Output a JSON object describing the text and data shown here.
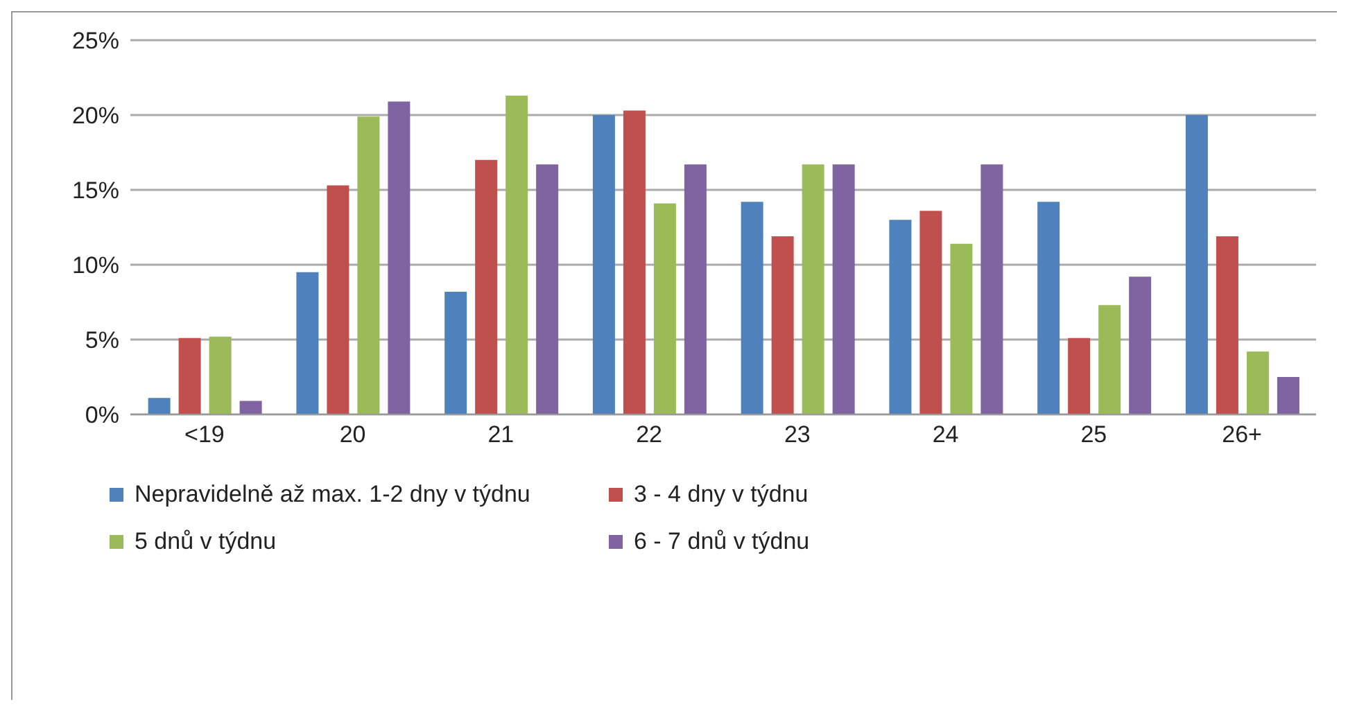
{
  "chart_data": {
    "type": "bar",
    "categories": [
      "<19",
      "20",
      "21",
      "22",
      "23",
      "24",
      "25",
      "26+"
    ],
    "series": [
      {
        "name": "Nepravidelně až max. 1-2 dny v týdnu",
        "color": "#4f81bd",
        "values": [
          1.1,
          9.5,
          8.2,
          20.0,
          14.2,
          13.0,
          14.2,
          20.0
        ]
      },
      {
        "name": "3 - 4 dny v týdnu",
        "color": "#c0504d",
        "values": [
          5.1,
          15.3,
          17.0,
          20.3,
          11.9,
          13.6,
          5.1,
          11.9
        ]
      },
      {
        "name": "5 dnů v týdnu",
        "color": "#9bbb59",
        "values": [
          5.2,
          19.9,
          21.3,
          14.1,
          16.7,
          11.4,
          7.3,
          4.2
        ]
      },
      {
        "name": "6 - 7 dnů v týdnu",
        "color": "#8064a2",
        "values": [
          0.9,
          20.9,
          16.7,
          16.7,
          16.7,
          16.7,
          9.2,
          2.5
        ]
      }
    ],
    "ylim": [
      0,
      25
    ],
    "yticks": [
      {
        "value": 0,
        "label": "0%"
      },
      {
        "value": 5,
        "label": "5%"
      },
      {
        "value": 10,
        "label": "10%"
      },
      {
        "value": 15,
        "label": "15%"
      },
      {
        "value": 20,
        "label": "20%"
      },
      {
        "value": 25,
        "label": "25%"
      }
    ],
    "grid": "y",
    "legend": "bottom"
  }
}
